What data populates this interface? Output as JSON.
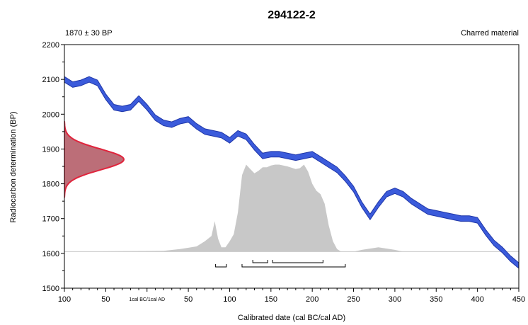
{
  "chart_data": {
    "type": "area",
    "title": "294122-2",
    "subtitle_left": "1870 ± 30 BP",
    "subtitle_right": "Charred material",
    "xlabel": "Calibrated date (cal BC/cal AD)",
    "ylabel": "Radiocarbon determination (BP)",
    "xlim": [
      -100,
      450
    ],
    "ylim": [
      1500,
      2200
    ],
    "x_ticks": [
      {
        "value": -100,
        "label": "100"
      },
      {
        "value": -50,
        "label": "50"
      },
      {
        "value": 0,
        "label": "1cal BC/1cal AD"
      },
      {
        "value": 50,
        "label": "50"
      },
      {
        "value": 100,
        "label": "100"
      },
      {
        "value": 150,
        "label": "150"
      },
      {
        "value": 200,
        "label": "200"
      },
      {
        "value": 250,
        "label": "250"
      },
      {
        "value": 300,
        "label": "300"
      },
      {
        "value": 350,
        "label": "350"
      },
      {
        "value": 400,
        "label": "400"
      },
      {
        "value": 450,
        "label": "450"
      }
    ],
    "y_ticks": [
      1500,
      1600,
      1700,
      1800,
      1900,
      2000,
      2100,
      2200
    ],
    "colors": {
      "calibration_curve": "#3b5bdb",
      "calibration_curve_edge": "#1f36a8",
      "measurement_fill": "#b05560",
      "measurement_edge": "#e0243c",
      "probability_fill": "#c8c8c8"
    },
    "calibration_curve": {
      "x": [
        -100,
        -90,
        -80,
        -70,
        -60,
        -50,
        -40,
        -30,
        -20,
        -10,
        0,
        10,
        20,
        30,
        40,
        50,
        60,
        70,
        80,
        90,
        100,
        110,
        120,
        130,
        140,
        150,
        160,
        170,
        180,
        190,
        200,
        210,
        220,
        230,
        240,
        250,
        260,
        270,
        280,
        290,
        300,
        310,
        320,
        330,
        340,
        350,
        360,
        370,
        380,
        390,
        400,
        410,
        420,
        430,
        440,
        450
      ],
      "y": [
        2100,
        2085,
        2090,
        2100,
        2090,
        2050,
        2020,
        2015,
        2020,
        2045,
        2020,
        1990,
        1975,
        1970,
        1980,
        1985,
        1965,
        1950,
        1945,
        1940,
        1925,
        1945,
        1935,
        1905,
        1880,
        1885,
        1885,
        1880,
        1875,
        1880,
        1885,
        1870,
        1855,
        1840,
        1815,
        1785,
        1740,
        1705,
        1740,
        1770,
        1780,
        1770,
        1750,
        1735,
        1720,
        1715,
        1710,
        1705,
        1700,
        1700,
        1695,
        1660,
        1630,
        1610,
        1585,
        1565
      ],
      "band_halfwidth": 8
    },
    "measurement": {
      "mean_bp": 1870,
      "sigma_bp": 30
    },
    "probability": {
      "x": [
        -100,
        20,
        40,
        60,
        70,
        78,
        82,
        86,
        90,
        95,
        100,
        105,
        110,
        115,
        120,
        125,
        130,
        135,
        140,
        145,
        150,
        155,
        160,
        170,
        180,
        185,
        190,
        195,
        200,
        205,
        210,
        215,
        220,
        225,
        230,
        235,
        240,
        245,
        250,
        260,
        280,
        300,
        310,
        320,
        450
      ],
      "density": [
        0,
        0.01,
        0.03,
        0.06,
        0.12,
        0.18,
        0.35,
        0.15,
        0.05,
        0.05,
        0.12,
        0.2,
        0.45,
        0.88,
        1.0,
        0.95,
        0.9,
        0.93,
        0.97,
        0.97,
        0.99,
        1.0,
        1.0,
        0.98,
        0.95,
        0.96,
        1.0,
        0.92,
        0.78,
        0.7,
        0.66,
        0.55,
        0.3,
        0.12,
        0.03,
        0,
        0,
        0,
        0,
        0.02,
        0.05,
        0.02,
        0,
        0,
        0
      ]
    },
    "ranges_2sigma": [
      [
        83,
        96
      ],
      [
        115,
        240
      ]
    ],
    "ranges_1sigma": [
      [
        128,
        146
      ],
      [
        152,
        213
      ]
    ]
  }
}
